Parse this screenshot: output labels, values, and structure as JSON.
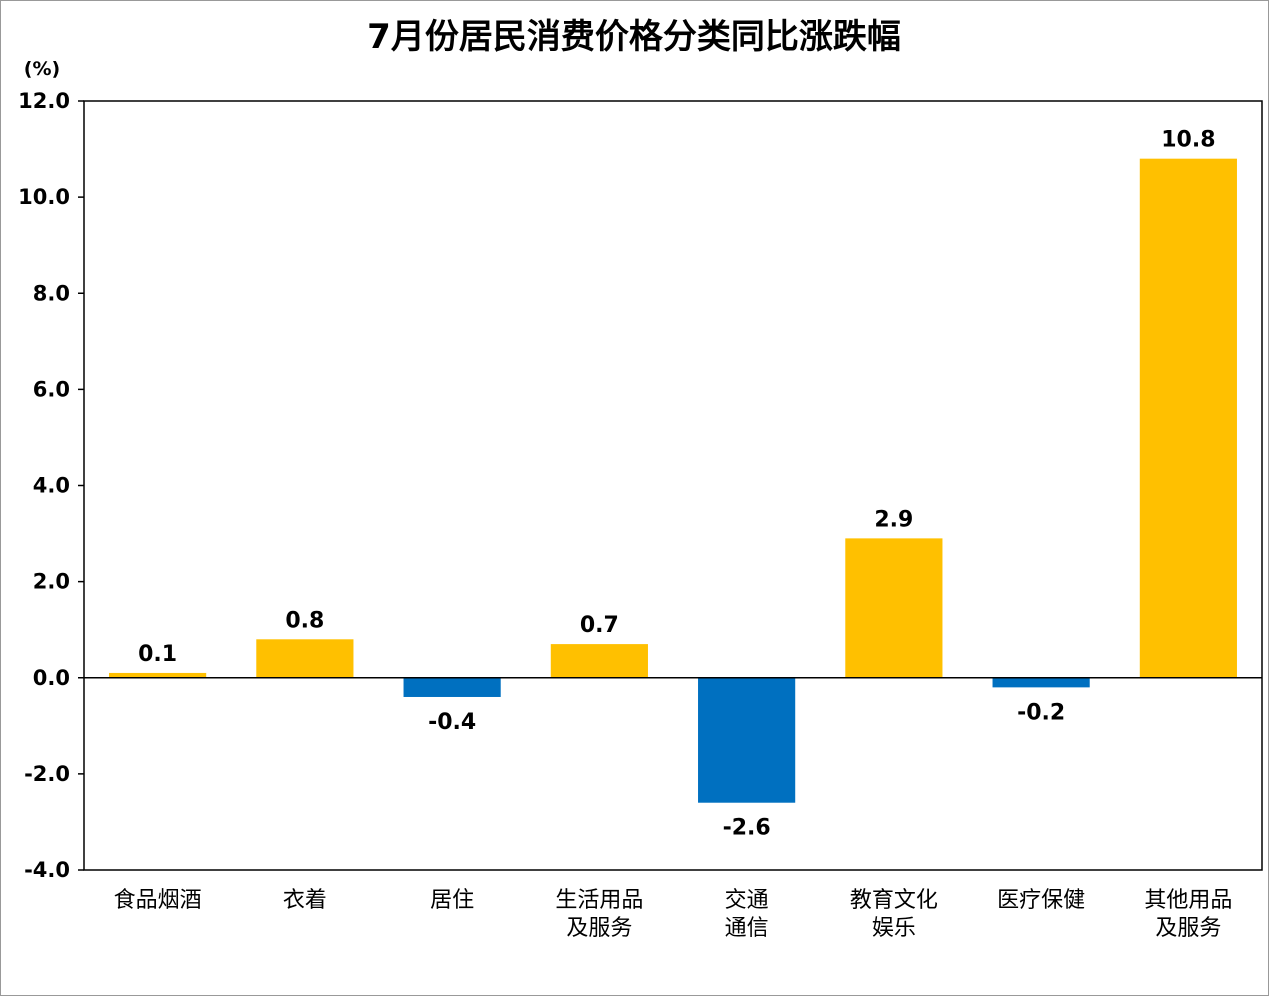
{
  "chart_data": {
    "type": "bar",
    "title": "7月份居民消费价格分类同比涨跌幅",
    "unit_label": "(%)",
    "categories": [
      [
        "食品烟酒"
      ],
      [
        "衣着"
      ],
      [
        "居住"
      ],
      [
        "生活用品",
        "及服务"
      ],
      [
        "交通",
        "通信"
      ],
      [
        "教育文化",
        "娱乐"
      ],
      [
        "医疗保健"
      ],
      [
        "其他用品",
        "及服务"
      ]
    ],
    "values": [
      0.1,
      0.8,
      -0.4,
      0.7,
      -2.6,
      2.9,
      -0.2,
      10.8
    ],
    "value_labels": [
      "0.1",
      "0.8",
      "-0.4",
      "0.7",
      "-2.6",
      "2.9",
      "-0.2",
      "10.8"
    ],
    "ylim": [
      -4.0,
      12.0
    ],
    "yticks": [
      -4.0,
      -2.0,
      0.0,
      2.0,
      4.0,
      6.0,
      8.0,
      10.0,
      12.0
    ],
    "ytick_labels": [
      "-4.0",
      "-2.0",
      "0.0",
      "2.0",
      "4.0",
      "6.0",
      "8.0",
      "10.0",
      "12.0"
    ],
    "grid": false,
    "colors": {
      "positive": "#FFC000",
      "negative": "#0070C0",
      "axis": "#000000",
      "frame": "#999999"
    }
  }
}
